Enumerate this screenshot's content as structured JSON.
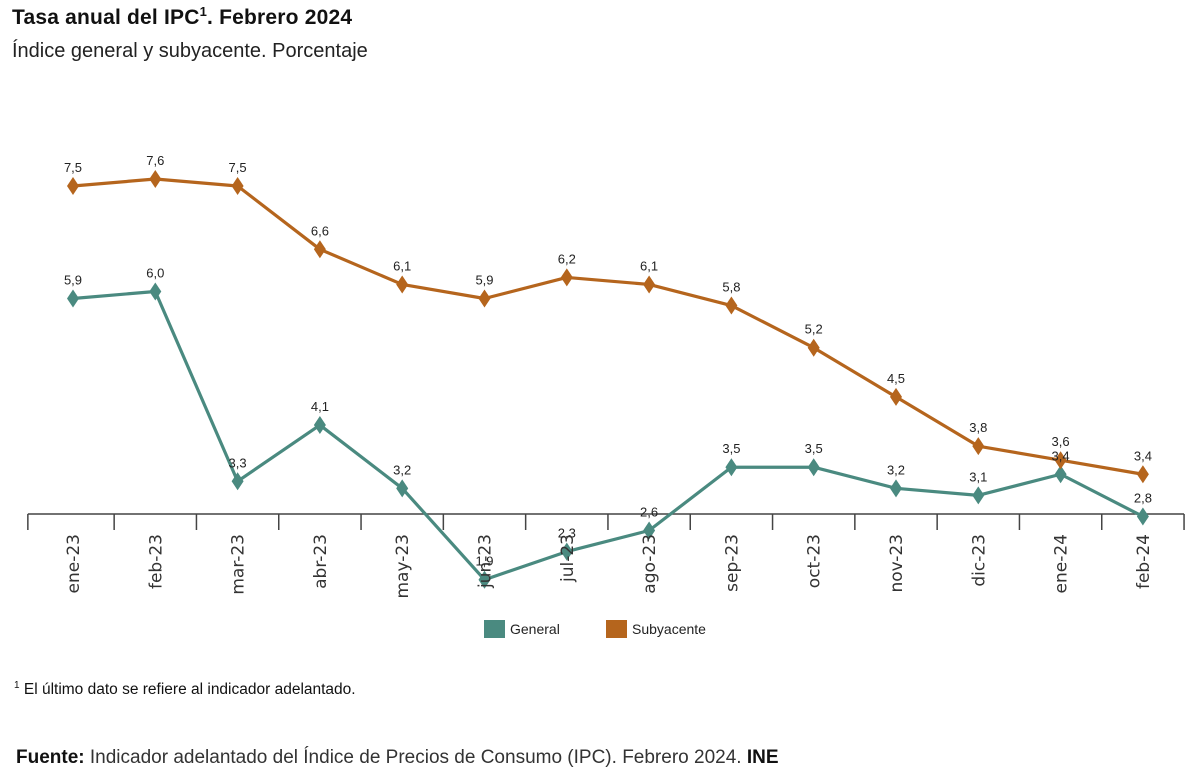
{
  "header": {
    "title": "Tasa anual del IPC",
    "title_sup": "1",
    "title_suffix": ". Febrero 2024",
    "subtitle": "Índice general y subyacente. Porcentaje"
  },
  "chart_data": {
    "type": "line",
    "title": "Tasa anual del IPC1. Febrero 2024",
    "subtitle": "Índice general y subyacente. Porcentaje",
    "categories": [
      "ene-23",
      "feb-23",
      "mar-23",
      "abr-23",
      "may-23",
      "jun-23",
      "jul-23",
      "ago-23",
      "sep-23",
      "oct-23",
      "nov-23",
      "dic-23",
      "ene-24",
      "feb-24"
    ],
    "series": [
      {
        "name": "General",
        "color": "#4a8a80",
        "values": [
          5.9,
          6.0,
          3.3,
          4.1,
          3.2,
          1.9,
          2.3,
          2.6,
          3.5,
          3.5,
          3.2,
          3.1,
          3.4,
          2.8
        ],
        "labels": [
          "5,9",
          "6,0",
          "3,3",
          "4,1",
          "3,2",
          "1,9",
          "2,3",
          "2,6",
          "3,5",
          "3,5",
          "3,2",
          "3,1",
          "3,4",
          "2,8"
        ]
      },
      {
        "name": "Subyacente",
        "color": "#b5651d",
        "values": [
          7.5,
          7.6,
          7.5,
          6.6,
          6.1,
          5.9,
          6.2,
          6.1,
          5.8,
          5.2,
          4.5,
          3.8,
          3.6,
          3.4
        ],
        "labels": [
          "7,5",
          "7,6",
          "7,5",
          "6,6",
          "6,1",
          "5,9",
          "6,2",
          "6,1",
          "5,8",
          "5,2",
          "4,5",
          "3,8",
          "3,6",
          "3,4"
        ]
      }
    ],
    "ylim": [
      1.0,
      8.0
    ],
    "grid": false,
    "legend": "bottom-center"
  },
  "footnote": {
    "sup": "1",
    "text": " El último dato se refiere al indicador adelantado."
  },
  "source": {
    "label": "Fuente:",
    "text": " Indicador adelantado del Índice de Precios de Consumo (IPC).  Febrero 2024. ",
    "org": "INE"
  }
}
